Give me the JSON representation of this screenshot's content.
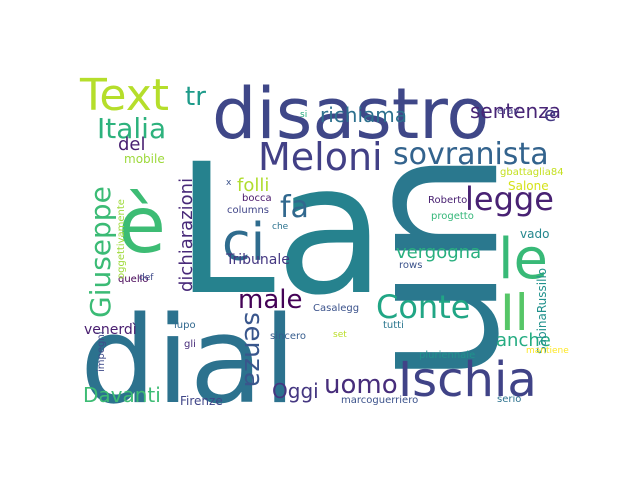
{
  "words": [
    {
      "id": "la",
      "text": "La",
      "color": "#26828e",
      "angle": 0
    },
    {
      "id": "un",
      "text": "un",
      "color": "#2a788e",
      "angle": 90
    },
    {
      "id": "dial",
      "text": "dial",
      "color": "#2c728e",
      "angle": 0
    },
    {
      "id": "disastro",
      "text": "disastro",
      "color": "#3f4788",
      "angle": 0
    },
    {
      "id": "e-grave",
      "text": "è",
      "color": "#3dbc74",
      "angle": 0
    },
    {
      "id": "meloni",
      "text": "Meloni",
      "color": "#424086",
      "angle": 0
    },
    {
      "id": "sovranista",
      "text": "sovranista",
      "color": "#33638d",
      "angle": 0
    },
    {
      "id": "ci",
      "text": "ci",
      "color": "#2f6c8e",
      "angle": 0
    },
    {
      "id": "le",
      "text": "le",
      "color": "#38b977",
      "angle": 0
    },
    {
      "id": "il",
      "text": "Il",
      "color": "#56c667",
      "angle": 0
    },
    {
      "id": "ischia",
      "text": "Ischia",
      "color": "#404387",
      "angle": 0
    },
    {
      "id": "text",
      "text": "Text",
      "color": "#b5de2b",
      "angle": 0
    },
    {
      "id": "italia",
      "text": "Italia",
      "color": "#2db27d",
      "angle": 0
    },
    {
      "id": "giuseppe",
      "text": "Giuseppe",
      "color": "#3bbb75",
      "angle": -90
    },
    {
      "id": "conte",
      "text": "Conte",
      "color": "#21a685",
      "angle": 0
    },
    {
      "id": "legge",
      "text": "legge",
      "color": "#482173",
      "angle": 0
    },
    {
      "id": "uomo",
      "text": "uomo",
      "color": "#472d7b",
      "angle": 0
    },
    {
      "id": "fa",
      "text": "fa",
      "color": "#31688e",
      "angle": 0
    },
    {
      "id": "male",
      "text": "male",
      "color": "#440256",
      "angle": 0
    },
    {
      "id": "senza",
      "text": "senza",
      "color": "#39568c",
      "angle": 90
    },
    {
      "id": "richiama",
      "text": "richiama",
      "color": "#2d708e",
      "angle": 0
    },
    {
      "id": "sentenza",
      "text": "sentenza",
      "color": "#482576",
      "angle": 0
    },
    {
      "id": "tr",
      "text": "tr",
      "color": "#1e9b8a",
      "angle": 0
    },
    {
      "id": "folli",
      "text": "folli",
      "color": "#b0dd2f",
      "angle": 0
    },
    {
      "id": "dichiarazioni",
      "text": "dichiarazioni",
      "color": "#482979",
      "angle": -90
    },
    {
      "id": "vergogna",
      "text": "vergogna",
      "color": "#29af7f",
      "angle": 0
    },
    {
      "id": "anche",
      "text": "anche",
      "color": "#25ac82",
      "angle": 0
    },
    {
      "id": "oggi",
      "text": "Oggi",
      "color": "#453781",
      "angle": 0
    },
    {
      "id": "davanti",
      "text": "Davanti",
      "color": "#3dbc74",
      "angle": 0
    },
    {
      "id": "del",
      "text": "del",
      "color": "#481f70",
      "angle": 0
    },
    {
      "id": "e-lower",
      "text": "e",
      "color": "#443983",
      "angle": 0
    },
    {
      "id": "venerdi",
      "text": "venerdì",
      "color": "#481d6f",
      "angle": 0
    },
    {
      "id": "tribunale",
      "text": "Tribunale",
      "color": "#453882",
      "angle": 0
    },
    {
      "id": "firenze",
      "text": "Firenze",
      "color": "#404688",
      "angle": 0
    },
    {
      "id": "salone",
      "text": "Salone",
      "color": "#d5e21a",
      "angle": 0
    },
    {
      "id": "roberto",
      "text": "Roberto",
      "color": "#482071",
      "angle": 0
    },
    {
      "id": "sabinarussillo",
      "text": "SabinaRussillo",
      "color": "#21918c",
      "angle": -90
    },
    {
      "id": "vado",
      "text": "vado",
      "color": "#24878e",
      "angle": 0
    },
    {
      "id": "mobile",
      "text": "mobile",
      "color": "#9dd93b",
      "angle": 0
    },
    {
      "id": "gbattaglia84",
      "text": "gbattaglia84",
      "color": "#c5e021",
      "angle": 0
    },
    {
      "id": "progetto",
      "text": "progetto",
      "color": "#35b779",
      "angle": 0
    },
    {
      "id": "rows",
      "text": "rows",
      "color": "#3b528b",
      "angle": 0
    },
    {
      "id": "columns",
      "text": "columns",
      "color": "#404588",
      "angle": 0
    },
    {
      "id": "bocca",
      "text": "bocca",
      "color": "#481769",
      "angle": 0
    },
    {
      "id": "x",
      "text": "x",
      "color": "#3b528b",
      "angle": 0
    },
    {
      "id": "che",
      "text": "che",
      "color": "#2c728e",
      "angle": 0
    },
    {
      "id": "quello",
      "text": "quello",
      "color": "#440154",
      "angle": 0
    },
    {
      "id": "def",
      "text": "def",
      "color": "#3e4989",
      "angle": 0
    },
    {
      "id": "oggettivamente",
      "text": "oggettivamente",
      "color": "#9fda3a",
      "angle": -90
    },
    {
      "id": "casalegg",
      "text": "Casalegg",
      "color": "#3b528b",
      "angle": 0
    },
    {
      "id": "lupo",
      "text": "lupo",
      "color": "#31688e",
      "angle": 0
    },
    {
      "id": "gli",
      "text": "gli",
      "color": "#472c7a",
      "angle": 0
    },
    {
      "id": "sincero",
      "text": "sincero",
      "color": "#365c8d",
      "angle": 0
    },
    {
      "id": "set",
      "text": "set",
      "color": "#bade28",
      "angle": 0
    },
    {
      "id": "tutti",
      "text": "tutti",
      "color": "#2a768e",
      "angle": 0
    },
    {
      "id": "impegni",
      "text": "impegni",
      "color": "#3e4a89",
      "angle": -90
    },
    {
      "id": "pluriennale",
      "text": "pluriennale",
      "color": "#20928c",
      "angle": 0
    },
    {
      "id": "mantiene",
      "text": "mantiene",
      "color": "#fde725",
      "angle": 0
    },
    {
      "id": "marcoguerriero",
      "text": "marcoguerriero",
      "color": "#3b528b",
      "angle": 0
    },
    {
      "id": "serio",
      "text": "serio",
      "color": "#2c728e",
      "angle": 0
    },
    {
      "id": "si",
      "text": "si",
      "color": "#27ad81",
      "angle": 0
    },
    {
      "id": "erav",
      "text": "erav",
      "color": "#443983",
      "angle": 0
    }
  ]
}
